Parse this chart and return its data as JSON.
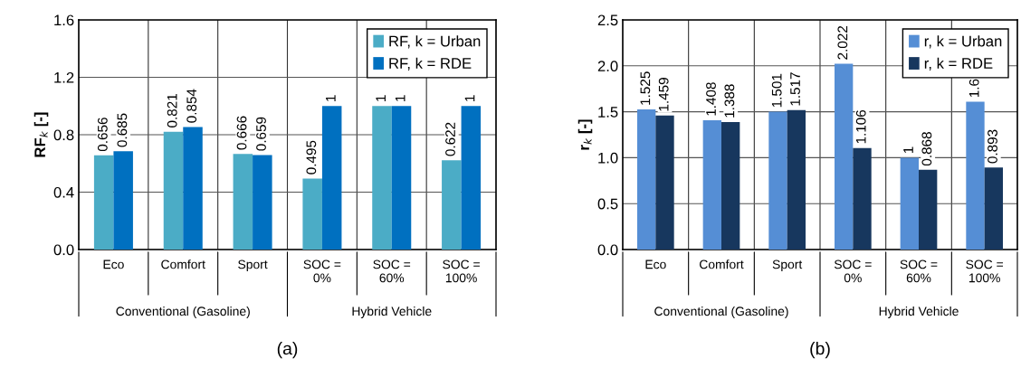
{
  "chart_data": [
    {
      "type": "bar",
      "categories": [
        "Eco",
        "Comfort",
        "Sport",
        "SOC =\n0%",
        "SOC =\n60%",
        "SOC =\n100%"
      ],
      "ylabel": "RF$_{k}$ [-]",
      "ylim": [
        0,
        1.6
      ],
      "yticks": [
        {
          "value": 0,
          "label": "0.0"
        },
        {
          "value": 0.4,
          "label": "0.4"
        },
        {
          "value": 0.8,
          "label": "0.8"
        },
        {
          "value": 1.2,
          "label": "1.2"
        },
        {
          "value": 1.6,
          "label": "1.6"
        }
      ],
      "grid": true,
      "legend": "top right",
      "data_labels": true,
      "annotations": [
        "Conventional (Gasoline)",
        "Hybrid Vehicle",
        "(a)"
      ],
      "series": [
        {
          "name": "RF, k = Urban",
          "color": "#4bacc6",
          "values": [
            0.656,
            0.821,
            0.666,
            0.495,
            1,
            0.622
          ]
        },
        {
          "name": "RF, k = RDE",
          "color": "#0070c0",
          "values": [
            0.685,
            0.854,
            0.659,
            1,
            1,
            1
          ]
        }
      ]
    },
    {
      "type": "bar",
      "categories": [
        "Eco",
        "Comfort",
        "Sport",
        "SOC =\n0%",
        "SOC =\n60%",
        "SOC =\n100%"
      ],
      "ylabel": "r$_{k}$ [-]",
      "ylim": [
        0,
        2.5
      ],
      "yticks": [
        {
          "value": 0,
          "label": "0.0"
        },
        {
          "value": 0.5,
          "label": "0.5"
        },
        {
          "value": 1,
          "label": "1.0"
        },
        {
          "value": 1.5,
          "label": "1.5"
        },
        {
          "value": 2,
          "label": "2.0"
        },
        {
          "value": 2.5,
          "label": "2.5"
        }
      ],
      "grid": true,
      "legend": "top right",
      "annotations": [
        "Conventional (Gasoline)",
        "Hybrid Vehicle",
        "(b)"
      ],
      "series": [
        {
          "name": "r, k = Urban",
          "color": "#558ed5",
          "values": [
            1.525,
            1.408,
            1.501,
            2.022,
            1,
            1.61
          ],
          "value_labels": [
            "1.525",
            "1.408",
            "1.501",
            "2.022",
            "1",
            "1.6"
          ]
        },
        {
          "name": "r, k = RDE",
          "color": "#17375e",
          "values": [
            1.459,
            1.388,
            1.517,
            1.106,
            0.868,
            0.893
          ],
          "value_labels": [
            "1.459",
            "1.388",
            "1.517",
            "1.106",
            "0.868",
            "0.893"
          ]
        }
      ]
    }
  ]
}
